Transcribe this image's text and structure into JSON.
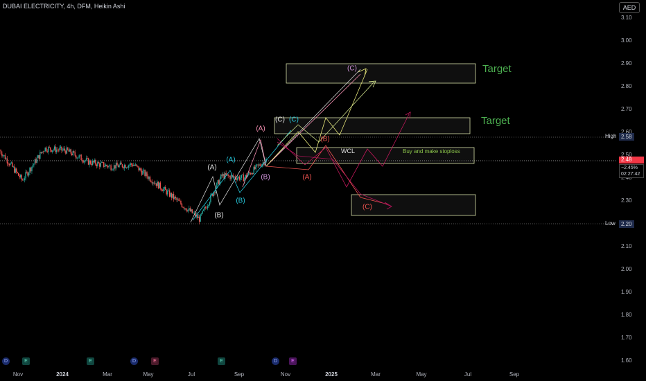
{
  "header": {
    "title": "DUBAI ELECTRICITY, 4h, DFM, Heikin Ashi",
    "currency": "AED"
  },
  "axes": {
    "y_ticks": [
      "3.10",
      "3.00",
      "2.90",
      "2.80",
      "2.70",
      "2.60",
      "2.50",
      "2.40",
      "2.30",
      "2.20",
      "2.10",
      "2.00",
      "1.90",
      "1.80",
      "1.70",
      "1.60"
    ],
    "x_ticks": [
      {
        "label": "Nov",
        "bold": false
      },
      {
        "label": "2024",
        "bold": true
      },
      {
        "label": "Mar",
        "bold": false
      },
      {
        "label": "May",
        "bold": false
      },
      {
        "label": "Jul",
        "bold": false
      },
      {
        "label": "Sep",
        "bold": false
      },
      {
        "label": "Nov",
        "bold": false
      },
      {
        "label": "2025",
        "bold": true
      },
      {
        "label": "Mar",
        "bold": false
      },
      {
        "label": "May",
        "bold": false
      },
      {
        "label": "Jul",
        "bold": false
      },
      {
        "label": "Sep",
        "bold": false
      }
    ]
  },
  "price_scale": {
    "high_label": "High",
    "high_value": "2.58",
    "low_label": "Low",
    "low_value": "2.20",
    "current_price": "2.48",
    "change_pct": "−2.45%",
    "countdown": "02:27:42"
  },
  "annotations": {
    "target_upper": "Target",
    "target_lower": "Target",
    "wcl": "WCL",
    "buy_note": "Buy and make stoploss",
    "wave_labels": [
      {
        "text": "(A)",
        "color": "#e0e0e0"
      },
      {
        "text": "(B)",
        "color": "#e0e0e0"
      },
      {
        "text": "(A)",
        "color": "#26c6da"
      },
      {
        "text": "(B)",
        "color": "#26c6da"
      },
      {
        "text": "(A)",
        "color": "#f48fb1"
      },
      {
        "text": "(B)",
        "color": "#ce93d8"
      },
      {
        "text": "(C)",
        "color": "#e0e0e0"
      },
      {
        "text": "(C)",
        "color": "#26c6da"
      },
      {
        "text": "(C)",
        "color": "#ce93d8"
      },
      {
        "text": "(B)",
        "color": "#ef5350"
      },
      {
        "text": "(A)",
        "color": "#ef5350"
      },
      {
        "text": "(C)",
        "color": "#ef5350"
      }
    ]
  },
  "event_markers": [
    "D",
    "E",
    "E",
    "D",
    "E",
    "E",
    "D",
    "E"
  ],
  "colors": {
    "up_candle": "#26a69a",
    "down_candle": "#ef5350",
    "background": "#000000",
    "target_text": "#4caf50"
  },
  "chart_data": {
    "type": "candlestick",
    "title": "DUBAI ELECTRICITY, 4h, DFM, Heikin Ashi",
    "ylim": [
      1.6,
      3.1
    ],
    "y_scale": "linear",
    "grid": false,
    "series": [
      {
        "name": "DUBAI ELECTRICITY",
        "x": [
          "Oct 2023",
          "Nov 2023",
          "Dec 2023",
          "2024",
          "Feb 2024",
          "Mar 2024",
          "Apr 2024",
          "May 2024",
          "Jun 2024",
          "Jul 2024",
          "Aug 2024",
          "Sep 2024",
          "Oct 2024"
        ],
        "approx_close": [
          2.52,
          2.39,
          2.53,
          2.52,
          2.47,
          2.45,
          2.46,
          2.38,
          2.3,
          2.22,
          2.41,
          2.4,
          2.48
        ]
      }
    ],
    "period_high": 2.58,
    "period_low": 2.2,
    "last_price": 2.48,
    "zones": [
      {
        "name": "Target",
        "y_range": [
          2.82,
          2.9
        ]
      },
      {
        "name": "Target",
        "y_range": [
          2.59,
          2.66
        ]
      },
      {
        "name": "WCL",
        "y_range": [
          2.47,
          2.53
        ]
      },
      {
        "name": "",
        "y_range": [
          2.26,
          2.33
        ]
      }
    ]
  }
}
